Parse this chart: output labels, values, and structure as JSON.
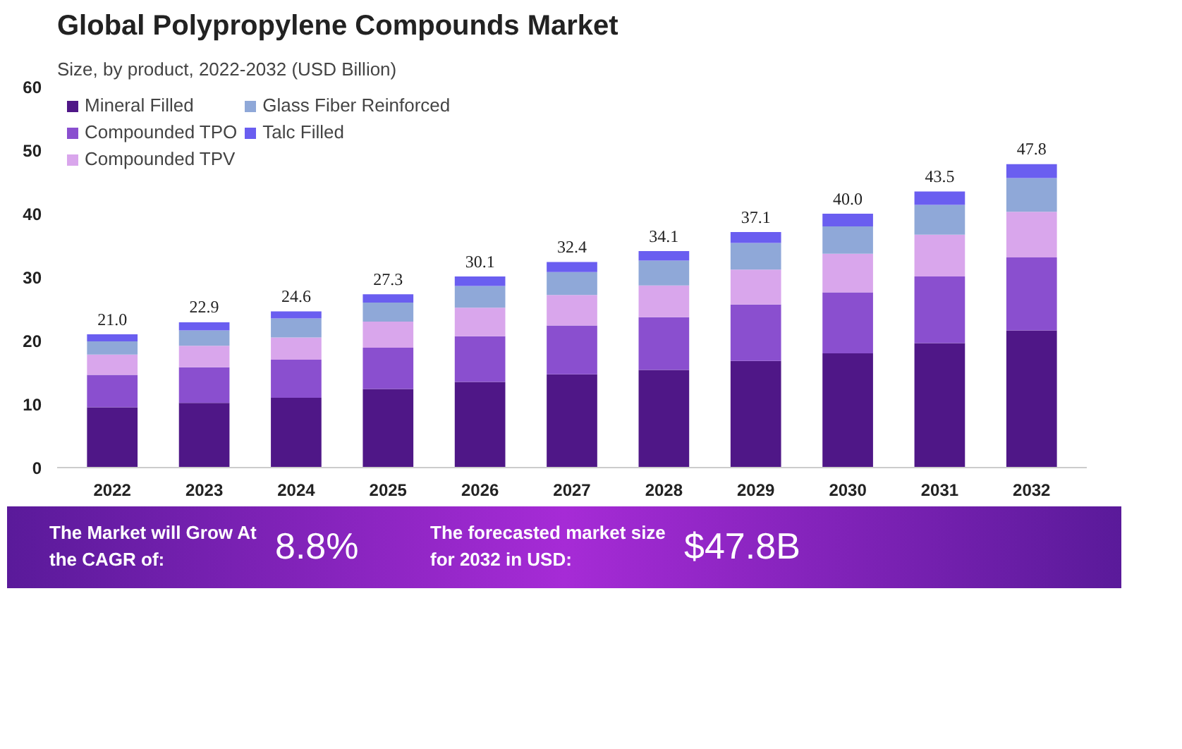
{
  "chart_data": {
    "type": "bar",
    "stacked": true,
    "title": "Global Polypropylene Compounds Market",
    "subtitle": "Size, by product, 2022-2032 (USD Billion)",
    "categories": [
      "2022",
      "2023",
      "2024",
      "2025",
      "2026",
      "2027",
      "2028",
      "2029",
      "2030",
      "2031",
      "2032"
    ],
    "series": [
      {
        "name": "Mineral Filled",
        "color": "#4f1787",
        "values": [
          9.5,
          10.2,
          11.0,
          12.4,
          13.5,
          14.7,
          15.4,
          16.8,
          18.0,
          19.6,
          21.6
        ]
      },
      {
        "name": "Compounded TPO",
        "color": "#8a4fcf",
        "values": [
          5.1,
          5.6,
          6.0,
          6.5,
          7.2,
          7.7,
          8.3,
          8.9,
          9.6,
          10.5,
          11.5
        ]
      },
      {
        "name": "Compounded TPV",
        "color": "#d9a6ec",
        "values": [
          3.2,
          3.4,
          3.5,
          4.1,
          4.5,
          4.8,
          5.0,
          5.5,
          6.1,
          6.6,
          7.2
        ]
      },
      {
        "name": "Glass Fiber Reinforced",
        "color": "#8fa8d8",
        "values": [
          2.1,
          2.4,
          3.0,
          3.0,
          3.4,
          3.6,
          3.9,
          4.2,
          4.3,
          4.7,
          5.3
        ]
      },
      {
        "name": "Talc Filled",
        "color": "#6a5ef0",
        "values": [
          1.1,
          1.3,
          1.1,
          1.3,
          1.5,
          1.6,
          1.5,
          1.7,
          2.0,
          2.1,
          2.2
        ]
      }
    ],
    "totals": [
      "21.0",
      "22.9",
      "24.6",
      "27.3",
      "30.1",
      "32.4",
      "34.1",
      "37.1",
      "40.0",
      "43.5",
      "47.8"
    ],
    "ylim": [
      0,
      60
    ],
    "yticks": [
      0,
      10,
      20,
      30,
      40,
      50,
      60
    ],
    "grid": false,
    "legend": "top left",
    "annotations": [
      "The Market will Grow At the CAGR of:",
      "8.8%",
      "The forecasted market size for 2032 in USD:",
      "$47.8B"
    ]
  }
}
